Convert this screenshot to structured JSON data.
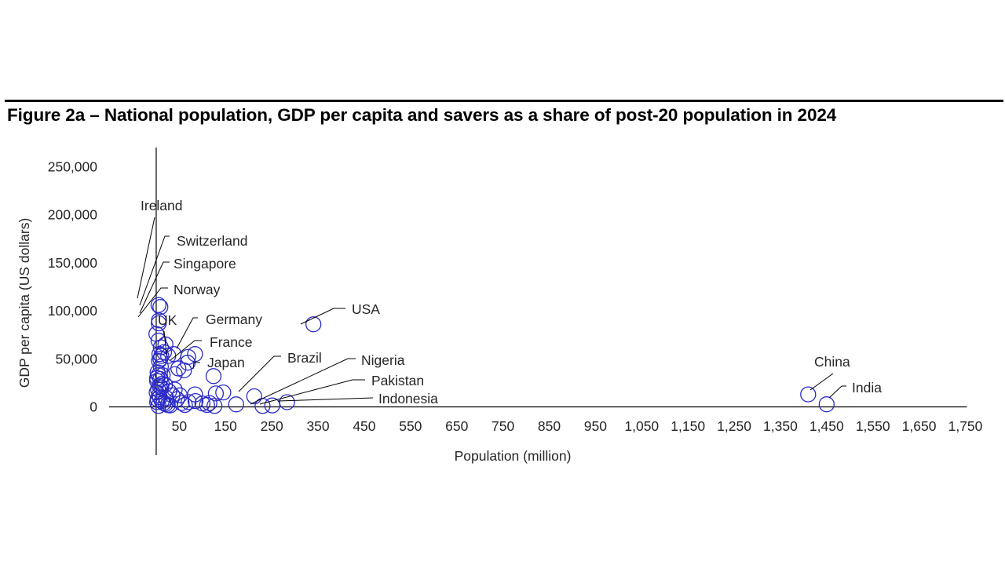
{
  "figure": {
    "title": "Figure 2a – National population, GDP per capita and savers as a share of post-20 population in 2024"
  },
  "colors": {
    "bubble": "#2b2bc8",
    "axis": "#000000",
    "leader": "#000000"
  },
  "chart_data": {
    "type": "scatter",
    "title": "Figure 2a – National population, GDP per capita and savers as a share of post-20 population in 2024",
    "xlabel": "Population  (million)",
    "ylabel": "GDP per capita (US dollars)",
    "xlim": [
      -50,
      1750
    ],
    "ylim": [
      0,
      250000
    ],
    "x_ticks": [
      50,
      150,
      250,
      350,
      450,
      550,
      650,
      750,
      850,
      950,
      1050,
      1150,
      1250,
      1350,
      1450,
      1550,
      1650,
      1750
    ],
    "x_tick_labels": [
      "50",
      "150",
      "250",
      "350",
      "450",
      "550",
      "650",
      "750",
      "850",
      "950",
      "1,050",
      "1,150",
      "1,250",
      "1,350",
      "1,450",
      "1,550",
      "1,650",
      "1,750"
    ],
    "y_ticks": [
      0,
      50000,
      100000,
      150000,
      200000,
      250000
    ],
    "y_tick_labels": [
      "0",
      "50,000",
      "100,000",
      "150,000",
      "200,000",
      "250,000"
    ],
    "grid": false,
    "labeled_points": [
      {
        "label": "Ireland",
        "x": 5,
        "y": 106000
      },
      {
        "label": "Switzerland",
        "x": 9,
        "y": 104000
      },
      {
        "label": "Singapore",
        "x": 6,
        "y": 90000
      },
      {
        "label": "Norway",
        "x": 5.5,
        "y": 87000
      },
      {
        "label": "UK",
        "x": 69,
        "y": 52000
      },
      {
        "label": "Germany",
        "x": 84,
        "y": 55000
      },
      {
        "label": "France",
        "x": 68,
        "y": 46000
      },
      {
        "label": "Japan",
        "x": 124,
        "y": 32000
      },
      {
        "label": "USA",
        "x": 340,
        "y": 86000
      },
      {
        "label": "Brazil",
        "x": 212,
        "y": 11000
      },
      {
        "label": "Nigeria",
        "x": 230,
        "y": 1000
      },
      {
        "label": "Pakistan",
        "x": 251,
        "y": 1500
      },
      {
        "label": "Indonesia",
        "x": 283,
        "y": 4900
      },
      {
        "label": "China",
        "x": 1410,
        "y": 13000
      },
      {
        "label": "India",
        "x": 1450,
        "y": 2700
      }
    ],
    "other_points": [
      {
        "x": 0.4,
        "y": 76000
      },
      {
        "x": 5,
        "y": 69000
      },
      {
        "x": 10,
        "y": 62000
      },
      {
        "x": 20,
        "y": 65000
      },
      {
        "x": 38,
        "y": 55000
      },
      {
        "x": 7,
        "y": 55000
      },
      {
        "x": 9,
        "y": 50000
      },
      {
        "x": 6,
        "y": 48000
      },
      {
        "x": 11,
        "y": 53000
      },
      {
        "x": 17,
        "y": 57000
      },
      {
        "x": 26,
        "y": 53000
      },
      {
        "x": 48,
        "y": 40000
      },
      {
        "x": 60,
        "y": 38000
      },
      {
        "x": 10,
        "y": 42000
      },
      {
        "x": 3,
        "y": 36000
      },
      {
        "x": 5,
        "y": 33000
      },
      {
        "x": 2,
        "y": 30000
      },
      {
        "x": 40,
        "y": 34000
      },
      {
        "x": 9,
        "y": 29000
      },
      {
        "x": 2,
        "y": 27000
      },
      {
        "x": 19,
        "y": 23000
      },
      {
        "x": 11,
        "y": 20000
      },
      {
        "x": 4,
        "y": 18000
      },
      {
        "x": 1,
        "y": 15000
      },
      {
        "x": 6,
        "y": 12000
      },
      {
        "x": 8,
        "y": 10000
      },
      {
        "x": 3,
        "y": 8000
      },
      {
        "x": 12,
        "y": 6000
      },
      {
        "x": 16,
        "y": 4000
      },
      {
        "x": 20,
        "y": 3000
      },
      {
        "x": 25,
        "y": 2000
      },
      {
        "x": 30,
        "y": 1500
      },
      {
        "x": 5,
        "y": 1000
      },
      {
        "x": 2,
        "y": 5000
      },
      {
        "x": 35,
        "y": 12000
      },
      {
        "x": 45,
        "y": 8000
      },
      {
        "x": 51,
        "y": 12000
      },
      {
        "x": 55,
        "y": 4000
      },
      {
        "x": 62,
        "y": 2000
      },
      {
        "x": 70,
        "y": 5000
      },
      {
        "x": 84,
        "y": 13000
      },
      {
        "x": 85,
        "y": 6000
      },
      {
        "x": 100,
        "y": 3500
      },
      {
        "x": 110,
        "y": 2000
      },
      {
        "x": 115,
        "y": 4000
      },
      {
        "x": 126,
        "y": 1000
      },
      {
        "x": 129,
        "y": 14000
      },
      {
        "x": 145,
        "y": 15000
      },
      {
        "x": 173,
        "y": 2600
      },
      {
        "x": 40,
        "y": 18000
      },
      {
        "x": 28,
        "y": 16000
      },
      {
        "x": 22,
        "y": 9000
      },
      {
        "x": 12,
        "y": 24000
      },
      {
        "x": 14,
        "y": 33000
      },
      {
        "x": 7,
        "y": 22000
      }
    ]
  }
}
